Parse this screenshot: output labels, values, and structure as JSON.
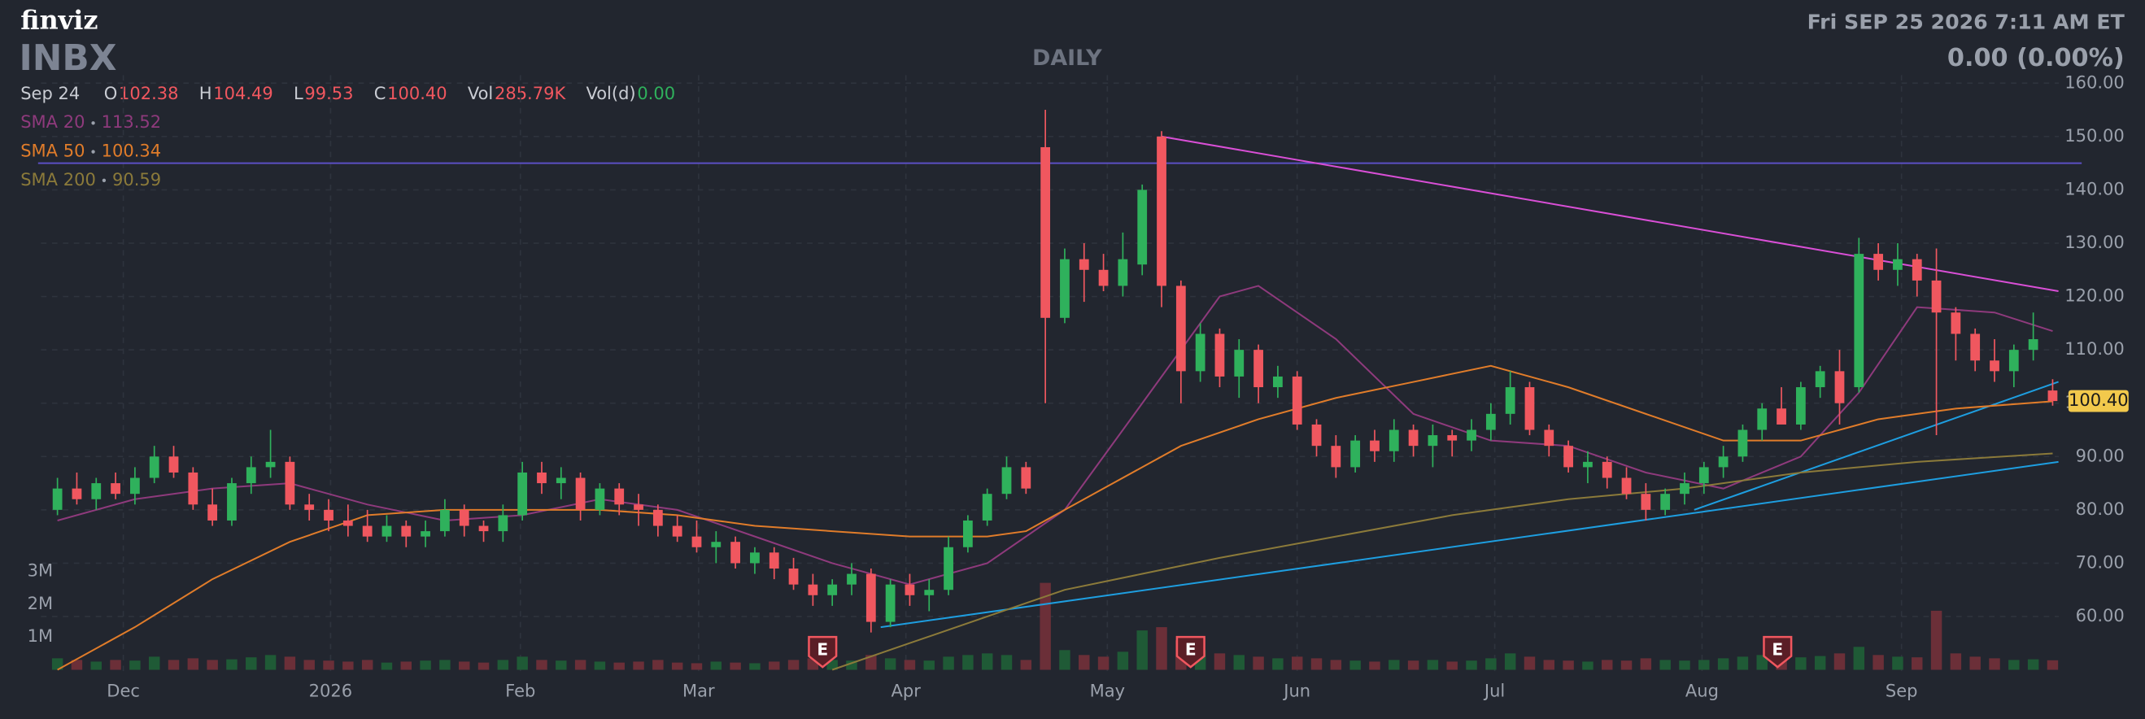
{
  "header": {
    "logo": "finviz",
    "ticker": "INBX",
    "timeframe": "DAILY",
    "datetime": "Fri SEP 25 2026 7:11 AM ET",
    "change": "0.00 (0.00%)",
    "date": "Sep 24",
    "quote": [
      {
        "label": "O",
        "value": "102.38"
      },
      {
        "label": "H",
        "value": "104.49"
      },
      {
        "label": "L",
        "value": "99.53"
      },
      {
        "label": "C",
        "value": "100.40"
      },
      {
        "label": "Vol",
        "value": "285.79K"
      },
      {
        "label": "Vol(d)",
        "value": "0.00"
      }
    ]
  },
  "chart_data": {
    "type": "candlestick",
    "ylim": [
      49.5,
      161.5
    ],
    "yticks": [
      {
        "value": 60,
        "label": "60.00"
      },
      {
        "value": 70,
        "label": "70.00"
      },
      {
        "value": 80,
        "label": "80.00"
      },
      {
        "value": 90,
        "label": "90.00"
      },
      {
        "value": 100,
        "label": "100.00"
      },
      {
        "value": 110,
        "label": "110.00"
      },
      {
        "value": 120,
        "label": "120.00"
      },
      {
        "value": 130,
        "label": "130.00"
      },
      {
        "value": 140,
        "label": "140.00"
      },
      {
        "value": 150,
        "label": "150.00"
      },
      {
        "value": 160,
        "label": "160.00"
      }
    ],
    "xlim": [
      -1,
      104.5
    ],
    "xticks": [
      {
        "value": 3.4,
        "label": "Dec"
      },
      {
        "value": 14.1,
        "label": "2026"
      },
      {
        "value": 23.9,
        "label": "Feb"
      },
      {
        "value": 33.1,
        "label": "Mar"
      },
      {
        "value": 43.8,
        "label": "Apr"
      },
      {
        "value": 54.2,
        "label": "May"
      },
      {
        "value": 64,
        "label": "Jun"
      },
      {
        "value": 74.2,
        "label": "Jul"
      },
      {
        "value": 84.9,
        "label": "Aug"
      },
      {
        "value": 95.2,
        "label": "Sep"
      }
    ],
    "up_color": "#2fb15c",
    "down_color": "#f0575f",
    "ohlc": [
      [
        80,
        86,
        79,
        84
      ],
      [
        84,
        87,
        81,
        82
      ],
      [
        82,
        86,
        80,
        85
      ],
      [
        85,
        87,
        82,
        83
      ],
      [
        83,
        88,
        81,
        86
      ],
      [
        86,
        92,
        85,
        90
      ],
      [
        90,
        92,
        86,
        87
      ],
      [
        87,
        88,
        80,
        81
      ],
      [
        81,
        84,
        77,
        78
      ],
      [
        78,
        86,
        77,
        85
      ],
      [
        85,
        90,
        83,
        88
      ],
      [
        88,
        95,
        86,
        89
      ],
      [
        89,
        90,
        80,
        81
      ],
      [
        81,
        83,
        78,
        80
      ],
      [
        80,
        82,
        76,
        78
      ],
      [
        78,
        81,
        75,
        77
      ],
      [
        77,
        80,
        74,
        75
      ],
      [
        75,
        79,
        74,
        77
      ],
      [
        77,
        78,
        73,
        75
      ],
      [
        75,
        78,
        73,
        76
      ],
      [
        76,
        82,
        75,
        80
      ],
      [
        80,
        81,
        75,
        77
      ],
      [
        77,
        78,
        74,
        76
      ],
      [
        76,
        81,
        74,
        79
      ],
      [
        79,
        89,
        78,
        87
      ],
      [
        87,
        89,
        83,
        85
      ],
      [
        85,
        88,
        82,
        86
      ],
      [
        86,
        87,
        78,
        80
      ],
      [
        80,
        85,
        79,
        84
      ],
      [
        84,
        85,
        79,
        81
      ],
      [
        81,
        83,
        77,
        80
      ],
      [
        80,
        81,
        75,
        77
      ],
      [
        77,
        79,
        74,
        75
      ],
      [
        75,
        78,
        72,
        73
      ],
      [
        73,
        76,
        70,
        74
      ],
      [
        74,
        75,
        69,
        70
      ],
      [
        70,
        73,
        68,
        72
      ],
      [
        72,
        73,
        67,
        69
      ],
      [
        69,
        71,
        65,
        66
      ],
      [
        66,
        68,
        62,
        64
      ],
      [
        64,
        67,
        62,
        66
      ],
      [
        66,
        70,
        64,
        68
      ],
      [
        68,
        69,
        57,
        59
      ],
      [
        59,
        67,
        58,
        66
      ],
      [
        66,
        68,
        62,
        64
      ],
      [
        64,
        67,
        61,
        65
      ],
      [
        65,
        75,
        64,
        73
      ],
      [
        73,
        79,
        72,
        78
      ],
      [
        78,
        84,
        77,
        83
      ],
      [
        83,
        90,
        82,
        88
      ],
      [
        88,
        89,
        83,
        84
      ],
      [
        148,
        155,
        100,
        116
      ],
      [
        116,
        129,
        115,
        127
      ],
      [
        127,
        130,
        119,
        125
      ],
      [
        125,
        128,
        121,
        122
      ],
      [
        122,
        132,
        120,
        127
      ],
      [
        126,
        141,
        124,
        140
      ],
      [
        150,
        151,
        118,
        122
      ],
      [
        122,
        123,
        100,
        106
      ],
      [
        106,
        115,
        104,
        113
      ],
      [
        113,
        114,
        103,
        105
      ],
      [
        105,
        112,
        101,
        110
      ],
      [
        110,
        111,
        100,
        103
      ],
      [
        103,
        107,
        101,
        105
      ],
      [
        105,
        106,
        95,
        96
      ],
      [
        96,
        97,
        90,
        92
      ],
      [
        92,
        94,
        86,
        88
      ],
      [
        88,
        94,
        87,
        93
      ],
      [
        93,
        95,
        89,
        91
      ],
      [
        91,
        97,
        89,
        95
      ],
      [
        95,
        96,
        90,
        92
      ],
      [
        92,
        96,
        88,
        94
      ],
      [
        94,
        95,
        90,
        93
      ],
      [
        93,
        97,
        91,
        95
      ],
      [
        95,
        100,
        93,
        98
      ],
      [
        98,
        106,
        96,
        103
      ],
      [
        103,
        104,
        94,
        95
      ],
      [
        95,
        96,
        90,
        92
      ],
      [
        92,
        93,
        87,
        88
      ],
      [
        88,
        91,
        85,
        89
      ],
      [
        89,
        90,
        84,
        86
      ],
      [
        86,
        88,
        82,
        83
      ],
      [
        83,
        85,
        78,
        80
      ],
      [
        80,
        84,
        79,
        83
      ],
      [
        83,
        87,
        81,
        85
      ],
      [
        85,
        89,
        83,
        88
      ],
      [
        88,
        92,
        86,
        90
      ],
      [
        90,
        96,
        89,
        95
      ],
      [
        95,
        100,
        93,
        99
      ],
      [
        99,
        103,
        97,
        96
      ],
      [
        96,
        104,
        95,
        103
      ],
      [
        103,
        107,
        101,
        106
      ],
      [
        106,
        110,
        96,
        100
      ],
      [
        103,
        131,
        102,
        128
      ],
      [
        128,
        130,
        123,
        125
      ],
      [
        125,
        130,
        122,
        127
      ],
      [
        127,
        128,
        120,
        123
      ],
      [
        123,
        129,
        94,
        117
      ],
      [
        117,
        118,
        108,
        113
      ],
      [
        113,
        114,
        106,
        108
      ],
      [
        108,
        112,
        104,
        106
      ],
      [
        106,
        111,
        103,
        110
      ],
      [
        110,
        117,
        108,
        112
      ],
      [
        102.38,
        104.49,
        99.53,
        100.4
      ]
    ],
    "volume": [
      0.35,
      0.3,
      0.25,
      0.3,
      0.28,
      0.4,
      0.3,
      0.35,
      0.3,
      0.32,
      0.38,
      0.45,
      0.4,
      0.3,
      0.28,
      0.25,
      0.3,
      0.22,
      0.25,
      0.28,
      0.3,
      0.25,
      0.22,
      0.3,
      0.4,
      0.3,
      0.28,
      0.3,
      0.25,
      0.22,
      0.25,
      0.3,
      0.22,
      0.2,
      0.25,
      0.22,
      0.2,
      0.25,
      0.3,
      0.35,
      0.3,
      0.28,
      0.45,
      0.35,
      0.3,
      0.28,
      0.4,
      0.45,
      0.5,
      0.45,
      0.3,
      2.65,
      0.6,
      0.45,
      0.4,
      0.55,
      1.2,
      1.3,
      0.9,
      0.6,
      0.5,
      0.45,
      0.4,
      0.35,
      0.4,
      0.35,
      0.3,
      0.28,
      0.25,
      0.3,
      0.28,
      0.3,
      0.25,
      0.28,
      0.35,
      0.5,
      0.4,
      0.3,
      0.28,
      0.25,
      0.3,
      0.28,
      0.35,
      0.3,
      0.28,
      0.3,
      0.35,
      0.4,
      0.45,
      0.4,
      0.38,
      0.42,
      0.5,
      0.7,
      0.45,
      0.4,
      0.38,
      1.8,
      0.5,
      0.4,
      0.35,
      0.3,
      0.32,
      0.29
    ],
    "vlim": [
      0,
      3
    ],
    "vticks": [
      {
        "value": 1,
        "label": "1M"
      },
      {
        "value": 2,
        "label": "2M"
      },
      {
        "value": 3,
        "label": "3M"
      }
    ],
    "series": [
      {
        "name": "SMA 20",
        "value_label": "113.52",
        "color": "#8e3a7c",
        "x": [
          0,
          4,
          8,
          12,
          16,
          20,
          24,
          28,
          32,
          36,
          40,
          44,
          48,
          52,
          56,
          60,
          62,
          66,
          70,
          74,
          78,
          82,
          86,
          90,
          93,
          96,
          100,
          103
        ],
        "values": [
          78,
          82,
          84,
          85,
          81,
          78,
          79,
          82,
          80,
          75,
          70,
          66,
          70,
          80,
          100,
          120,
          122,
          112,
          98,
          93,
          92,
          87,
          84,
          90,
          102,
          118,
          117,
          113.52
        ]
      },
      {
        "name": "SMA 50",
        "value_label": "100.34",
        "color": "#e07c2a",
        "x": [
          0,
          4,
          8,
          12,
          16,
          20,
          24,
          28,
          32,
          36,
          40,
          44,
          48,
          50,
          54,
          58,
          62,
          66,
          70,
          74,
          78,
          82,
          86,
          90,
          94,
          98,
          103
        ],
        "values": [
          50,
          58,
          67,
          74,
          79,
          80,
          80,
          80,
          79,
          77,
          76,
          75,
          75,
          76,
          84,
          92,
          97,
          101,
          104,
          107,
          103,
          98,
          93,
          93,
          97,
          99,
          100.34
        ]
      },
      {
        "name": "SMA 200",
        "value_label": "90.59",
        "color": "#8b7a3a",
        "x": [
          40,
          44,
          48,
          52,
          56,
          60,
          66,
          72,
          78,
          84,
          90,
          96,
          103
        ],
        "values": [
          50,
          55,
          60,
          65,
          68,
          71,
          75,
          79,
          82,
          84,
          87,
          89,
          90.59
        ]
      }
    ],
    "trendlines": [
      {
        "color": "#5b4fc4",
        "x": [
          -1,
          104.5
        ],
        "y": [
          145,
          145
        ]
      },
      {
        "color": "#d94fd6",
        "x": [
          57,
          103.3
        ],
        "y": [
          150,
          121
        ]
      },
      {
        "color": "#1e9ee0",
        "x": [
          42.5,
          103.3
        ],
        "y": [
          58,
          89
        ]
      },
      {
        "color": "#1e9ee0",
        "x": [
          84.5,
          103.3
        ],
        "y": [
          80,
          104
        ]
      }
    ],
    "earnings": {
      "label": "E",
      "x": [
        39.5,
        58.5,
        88.8
      ]
    },
    "last_price_label": "100.40"
  }
}
